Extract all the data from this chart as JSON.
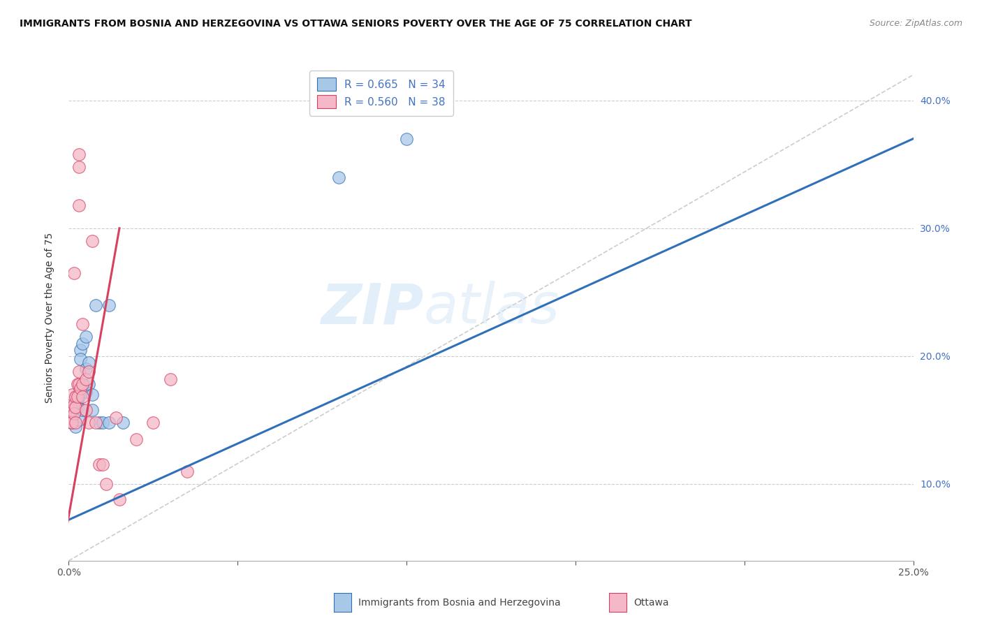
{
  "title": "IMMIGRANTS FROM BOSNIA AND HERZEGOVINA VS OTTAWA SENIORS POVERTY OVER THE AGE OF 75 CORRELATION CHART",
  "source": "Source: ZipAtlas.com",
  "ylabel": "Seniors Poverty Over the Age of 75",
  "xlim": [
    0.0,
    0.25
  ],
  "ylim": [
    0.04,
    0.42
  ],
  "xticks": [
    0.0,
    0.05,
    0.1,
    0.15,
    0.2,
    0.25
  ],
  "yticks": [
    0.1,
    0.2,
    0.3,
    0.4
  ],
  "xticklabels": [
    "0.0%",
    "",
    "",
    "",
    "",
    "25.0%"
  ],
  "yticklabels_right": [
    "10.0%",
    "20.0%",
    "30.0%",
    "40.0%"
  ],
  "color_blue": "#a8c8e8",
  "color_pink": "#f4b8c8",
  "color_blue_line": "#3070b8",
  "color_pink_line": "#d84060",
  "color_diag": "#c8c8c8",
  "watermark_zip": "ZIP",
  "watermark_atlas": "atlas",
  "blue_dots": [
    [
      0.0005,
      0.155
    ],
    [
      0.0008,
      0.148
    ],
    [
      0.001,
      0.158
    ],
    [
      0.001,
      0.152
    ],
    [
      0.0015,
      0.16
    ],
    [
      0.0015,
      0.155
    ],
    [
      0.002,
      0.168
    ],
    [
      0.002,
      0.162
    ],
    [
      0.002,
      0.145
    ],
    [
      0.0025,
      0.165
    ],
    [
      0.0025,
      0.16
    ],
    [
      0.003,
      0.172
    ],
    [
      0.003,
      0.168
    ],
    [
      0.003,
      0.15
    ],
    [
      0.0035,
      0.205
    ],
    [
      0.0035,
      0.198
    ],
    [
      0.004,
      0.21
    ],
    [
      0.004,
      0.175
    ],
    [
      0.004,
      0.158
    ],
    [
      0.005,
      0.215
    ],
    [
      0.005,
      0.19
    ],
    [
      0.005,
      0.172
    ],
    [
      0.006,
      0.195
    ],
    [
      0.006,
      0.178
    ],
    [
      0.007,
      0.17
    ],
    [
      0.007,
      0.158
    ],
    [
      0.008,
      0.24
    ],
    [
      0.009,
      0.148
    ],
    [
      0.01,
      0.148
    ],
    [
      0.012,
      0.24
    ],
    [
      0.012,
      0.148
    ],
    [
      0.016,
      0.148
    ],
    [
      0.08,
      0.34
    ],
    [
      0.1,
      0.37
    ]
  ],
  "pink_dots": [
    [
      0.0003,
      0.152
    ],
    [
      0.0005,
      0.16
    ],
    [
      0.0008,
      0.148
    ],
    [
      0.001,
      0.17
    ],
    [
      0.001,
      0.158
    ],
    [
      0.001,
      0.148
    ],
    [
      0.0015,
      0.162
    ],
    [
      0.0015,
      0.155
    ],
    [
      0.0015,
      0.265
    ],
    [
      0.002,
      0.168
    ],
    [
      0.002,
      0.16
    ],
    [
      0.002,
      0.148
    ],
    [
      0.0025,
      0.178
    ],
    [
      0.0025,
      0.168
    ],
    [
      0.003,
      0.188
    ],
    [
      0.003,
      0.178
    ],
    [
      0.003,
      0.358
    ],
    [
      0.003,
      0.348
    ],
    [
      0.003,
      0.318
    ],
    [
      0.0035,
      0.175
    ],
    [
      0.004,
      0.225
    ],
    [
      0.004,
      0.178
    ],
    [
      0.004,
      0.168
    ],
    [
      0.005,
      0.182
    ],
    [
      0.005,
      0.158
    ],
    [
      0.006,
      0.188
    ],
    [
      0.006,
      0.148
    ],
    [
      0.007,
      0.29
    ],
    [
      0.008,
      0.148
    ],
    [
      0.009,
      0.115
    ],
    [
      0.01,
      0.115
    ],
    [
      0.011,
      0.1
    ],
    [
      0.014,
      0.152
    ],
    [
      0.015,
      0.088
    ],
    [
      0.02,
      0.135
    ],
    [
      0.025,
      0.148
    ],
    [
      0.03,
      0.182
    ],
    [
      0.035,
      0.11
    ]
  ],
  "blue_line_x": [
    0.0,
    0.25
  ],
  "blue_line_y": [
    0.072,
    0.37
  ],
  "pink_line_x": [
    -0.001,
    0.015
  ],
  "pink_line_y": [
    0.06,
    0.3
  ],
  "diag_line_x": [
    0.0,
    0.25
  ],
  "diag_line_y": [
    0.04,
    0.42
  ],
  "dot_size": 160,
  "legend_label1": "Immigrants from Bosnia and Herzegovina",
  "legend_label2": "Ottawa",
  "legend_r1": "R = 0.665",
  "legend_n1": "N = 34",
  "legend_r2": "R = 0.560",
  "legend_n2": "N = 38"
}
